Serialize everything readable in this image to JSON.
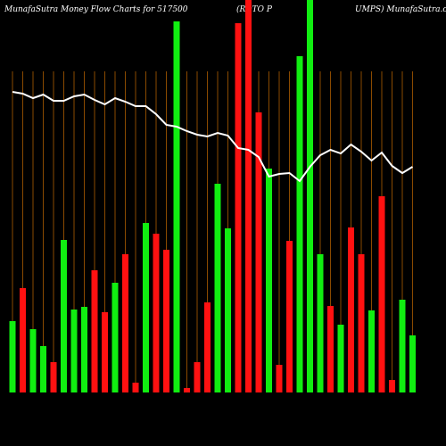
{
  "chart_data": {
    "type": "bar_line",
    "title": [
      "MunafaSutra  Money Flow  Charts for 517500",
      "(ROTO P",
      "UMPS) MunafaSutra.com"
    ],
    "values": [
      80,
      117,
      71,
      52,
      34,
      171,
      93,
      96,
      137,
      90,
      123,
      155,
      11,
      190,
      178,
      160,
      416,
      5,
      34,
      101,
      234,
      184,
      414,
      440,
      314,
      251,
      31,
      170,
      377,
      440,
      155,
      97,
      76,
      185,
      155,
      92,
      220,
      14,
      104,
      64
    ],
    "colors": [
      "#11ee11",
      "#ff1111",
      "#11ee11",
      "#11ee11",
      "#ff1111",
      "#11ee11",
      "#11ee11",
      "#11ee11",
      "#ff1111",
      "#ff1111",
      "#11ee11",
      "#ff1111",
      "#ff1111",
      "#11ee11",
      "#ff1111",
      "#ff1111",
      "#11ee11",
      "#ff1111",
      "#ff1111",
      "#ff1111",
      "#11ee11",
      "#11ee11",
      "#ff1111",
      "#ff1111",
      "#ff1111",
      "#11ee11",
      "#ff1111",
      "#ff1111",
      "#11ee11",
      "#11ee11",
      "#11ee11",
      "#ff1111",
      "#11ee11",
      "#ff1111",
      "#ff1111",
      "#11ee11",
      "#ff1111",
      "#ff1111",
      "#11ee11",
      "#11ee11"
    ],
    "line_values": [
      337,
      335,
      330,
      334,
      327,
      327,
      332,
      334,
      328,
      323,
      330,
      326,
      321,
      321,
      312,
      300,
      298,
      293,
      289,
      287,
      291,
      288,
      274,
      272,
      264,
      242,
      245,
      246,
      237,
      253,
      266,
      272,
      268,
      278,
      270,
      260,
      269,
      254,
      246,
      253
    ],
    "line_color": "#ffffff",
    "ylim": [
      0,
      440
    ]
  }
}
